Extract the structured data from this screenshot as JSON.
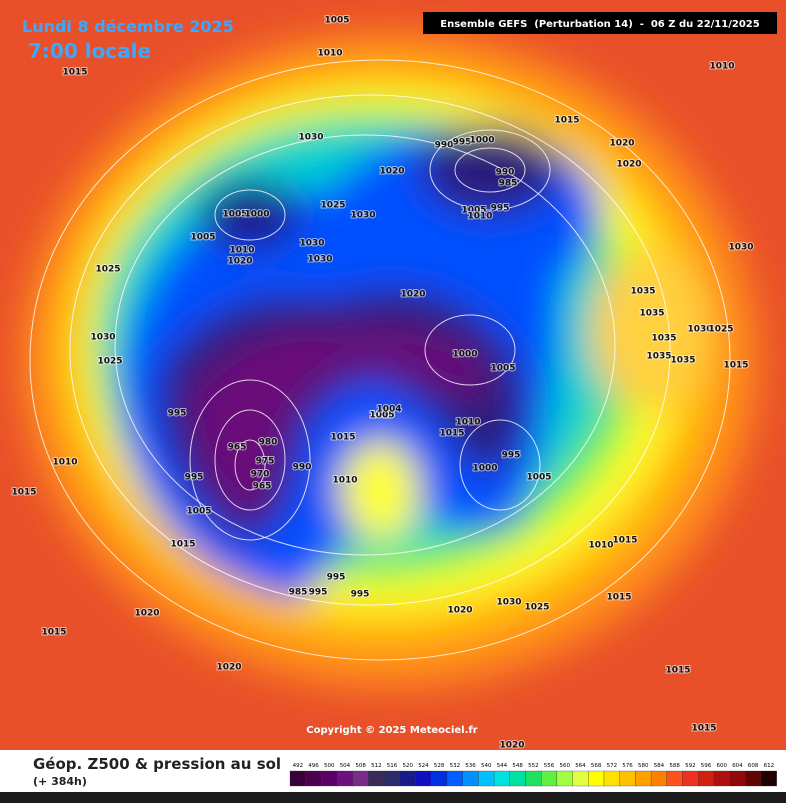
{
  "header": {
    "date": "Lundi 8 décembre 2025",
    "time": "7:00 locale",
    "run": "Ensemble GEFS  (Perturbation 14)  -  06 Z du 22/11/2025"
  },
  "copyright": "Copyright © 2025 Meteociel.fr",
  "isobars": [
    1005,
    1010,
    1015,
    1010,
    1015,
    1030,
    990,
    995,
    1000,
    1020,
    990,
    985,
    1020,
    1020,
    1005,
    995,
    1010,
    1025,
    1030,
    1005,
    1000,
    1005,
    1010,
    1020,
    1030,
    1030,
    1030,
    1025,
    1020,
    1035,
    1035,
    1030,
    1025,
    1035,
    1030,
    1025,
    1000,
    1005,
    1035,
    1035,
    1015,
    1010,
    995,
    1005,
    1004,
    1015,
    1010,
    1015,
    980,
    965,
    975,
    990,
    995,
    970,
    965,
    1000,
    995,
    1005,
    1010,
    1010,
    1015,
    1005,
    1015,
    1010,
    1015,
    995,
    985,
    995,
    995,
    1020,
    1030,
    1025,
    1020,
    1015,
    1015,
    1020,
    1015,
    1015,
    1020
  ],
  "legend": {
    "title": "Géop. Z500 & pression au sol",
    "lead": "(+ 384h)",
    "labels": [
      492,
      496,
      500,
      504,
      508,
      512,
      516,
      520,
      524,
      528,
      532,
      536,
      540,
      544,
      548,
      552,
      556,
      560,
      564,
      568,
      572,
      576,
      580,
      584,
      588,
      592,
      596,
      600,
      604,
      608,
      612
    ],
    "colors": [
      "#3a003a",
      "#4b0050",
      "#5c0068",
      "#6e1080",
      "#7a2a8a",
      "#3a2a5a",
      "#2b2b6a",
      "#1a1a8a",
      "#1010c0",
      "#0030e0",
      "#0060ff",
      "#0090ff",
      "#00c0ff",
      "#00e0e0",
      "#00e0a0",
      "#20e060",
      "#60f040",
      "#a0ff40",
      "#e0ff40",
      "#ffff00",
      "#ffe000",
      "#ffc000",
      "#ffa000",
      "#ff8000",
      "#ff5020",
      "#f03020",
      "#d02010",
      "#b01010",
      "#900808",
      "#600404",
      "#200000"
    ]
  }
}
